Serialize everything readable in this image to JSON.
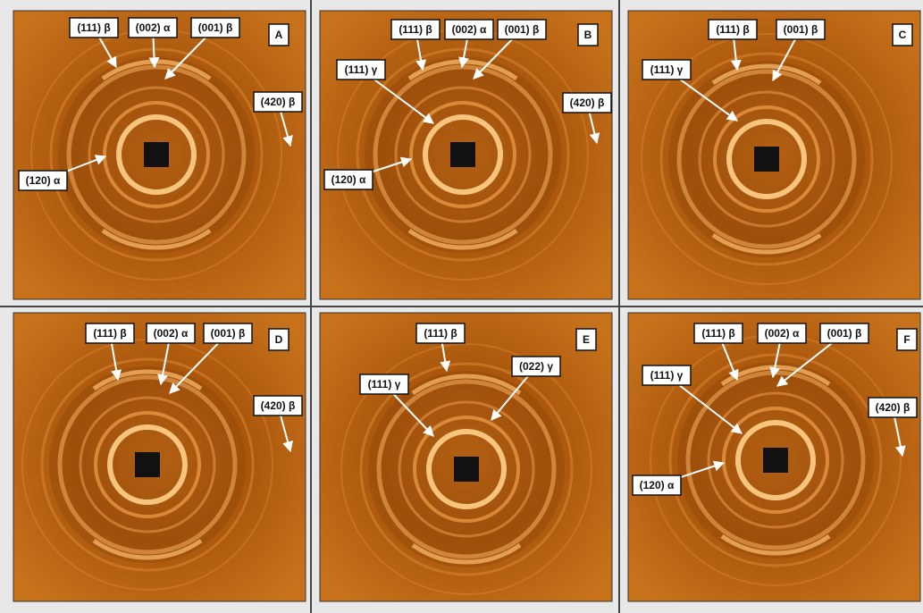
{
  "panels": [
    {
      "letter": "A",
      "labels": [
        "(111) β",
        "(002) α",
        "(001) β",
        "(420) β",
        "(120) α"
      ]
    },
    {
      "letter": "B",
      "labels": [
        "(111) β",
        "(002) α",
        "(001) β",
        "(111) γ",
        "(420) β",
        "(120) α"
      ]
    },
    {
      "letter": "C",
      "labels": [
        "(111) β",
        "(001) β",
        "(111) γ"
      ]
    },
    {
      "letter": "D",
      "labels": [
        "(111) β",
        "(002) α",
        "(001) β",
        "(420) β"
      ]
    },
    {
      "letter": "E",
      "labels": [
        "(111) β",
        "(111) γ",
        "(022) γ"
      ]
    },
    {
      "letter": "F",
      "labels": [
        "(111) β",
        "(002) α",
        "(001) β",
        "(111) γ",
        "(420) β",
        "(120) α"
      ]
    }
  ]
}
